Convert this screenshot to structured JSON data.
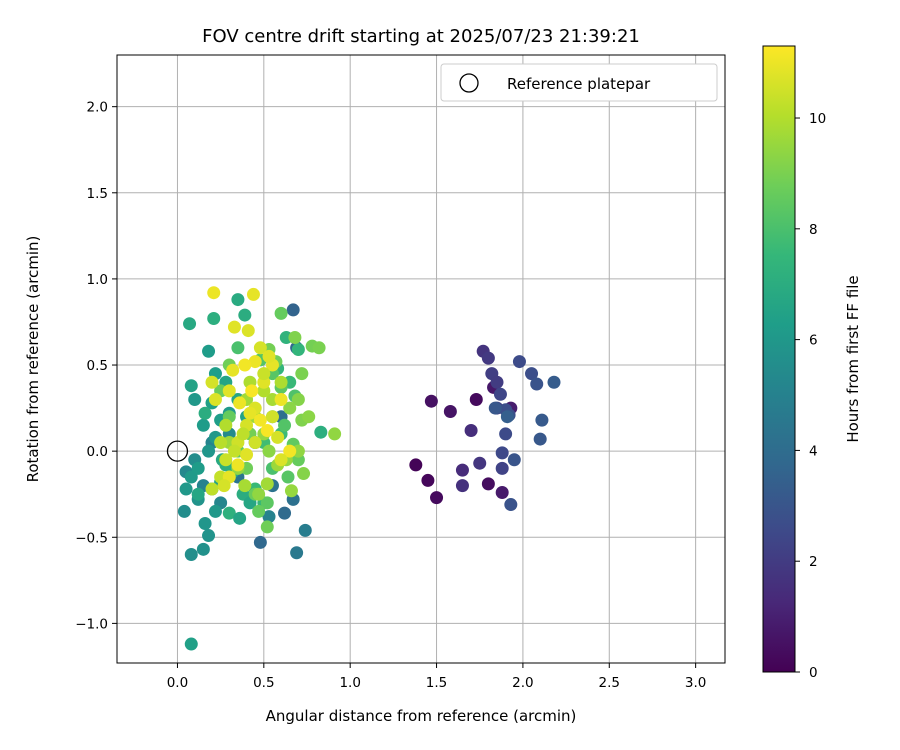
{
  "chart_data": {
    "type": "scatter",
    "title": "FOV centre drift starting at 2025/07/23 21:39:21",
    "xlabel": "Angular distance from reference (arcmin)",
    "ylabel": "Rotation from reference (arcmin)",
    "xlim": [
      -0.35,
      3.17
    ],
    "ylim": [
      -1.23,
      2.3
    ],
    "xticks": [
      0.0,
      0.5,
      1.0,
      1.5,
      2.0,
      2.5,
      3.0
    ],
    "xtick_labels": [
      "0.0",
      "0.5",
      "1.0",
      "1.5",
      "2.0",
      "2.5",
      "3.0"
    ],
    "yticks": [
      -1.0,
      -0.5,
      0.0,
      0.5,
      1.0,
      1.5,
      2.0
    ],
    "ytick_labels": [
      "−1.0",
      "−0.5",
      "0.0",
      "0.5",
      "1.0",
      "1.5",
      "2.0"
    ],
    "grid": true,
    "legend": {
      "placement": "top-right",
      "entries": [
        "Reference platepar"
      ]
    },
    "reference_point": {
      "x": 0.0,
      "y": 0.0,
      "marker": "open-circle"
    },
    "colorbar": {
      "label": "Hours from first FF file",
      "min": 0,
      "max": 11.3,
      "ticks": [
        0,
        2,
        4,
        6,
        8,
        10
      ],
      "tick_labels": [
        "0",
        "2",
        "4",
        "6",
        "8",
        "10"
      ],
      "colormap": "viridis"
    },
    "colormap_stops": [
      "#440154",
      "#482878",
      "#3e4989",
      "#31688e",
      "#26828e",
      "#1f9e89",
      "#35b779",
      "#6ece58",
      "#b5de2b",
      "#fde725"
    ],
    "points": [
      [
        1.38,
        -0.08,
        0.1
      ],
      [
        1.45,
        -0.17,
        0.2
      ],
      [
        1.5,
        -0.27,
        0.3
      ],
      [
        1.47,
        0.29,
        0.5
      ],
      [
        1.58,
        0.23,
        0.6
      ],
      [
        1.73,
        0.3,
        0.3
      ],
      [
        1.8,
        -0.19,
        0.4
      ],
      [
        1.83,
        0.37,
        0.7
      ],
      [
        1.88,
        -0.24,
        0.8
      ],
      [
        1.93,
        0.25,
        0.9
      ],
      [
        1.65,
        -0.11,
        1.4
      ],
      [
        1.65,
        -0.2,
        1.6
      ],
      [
        1.7,
        0.12,
        1.5
      ],
      [
        1.75,
        -0.07,
        1.8
      ],
      [
        1.77,
        0.58,
        1.7
      ],
      [
        1.8,
        0.54,
        1.9
      ],
      [
        1.82,
        0.45,
        2.1
      ],
      [
        1.85,
        0.4,
        2.0
      ],
      [
        1.85,
        0.25,
        2.2
      ],
      [
        1.87,
        0.33,
        2.4
      ],
      [
        1.88,
        -0.01,
        2.5
      ],
      [
        1.88,
        -0.1,
        2.3
      ],
      [
        1.9,
        0.1,
        2.6
      ],
      [
        1.9,
        0.24,
        2.7
      ],
      [
        1.92,
        0.21,
        2.8
      ],
      [
        1.93,
        -0.31,
        2.9
      ],
      [
        1.95,
        -0.05,
        3.0
      ],
      [
        1.98,
        0.52,
        2.6
      ],
      [
        2.05,
        0.45,
        2.7
      ],
      [
        2.08,
        0.39,
        2.9
      ],
      [
        2.1,
        0.07,
        3.1
      ],
      [
        2.11,
        0.18,
        3.2
      ],
      [
        2.18,
        0.4,
        3.3
      ],
      [
        1.84,
        0.25,
        3.1
      ],
      [
        1.91,
        0.2,
        3.4
      ],
      [
        0.67,
        0.82,
        3.6
      ],
      [
        0.48,
        -0.53,
        3.8
      ],
      [
        0.62,
        -0.36,
        3.9
      ],
      [
        0.67,
        -0.28,
        4.2
      ],
      [
        0.69,
        0.6,
        3.7
      ],
      [
        0.45,
        0.05,
        4.0
      ],
      [
        0.55,
        -0.2,
        4.3
      ],
      [
        0.35,
        -0.15,
        4.4
      ],
      [
        0.6,
        0.2,
        4.1
      ],
      [
        0.69,
        -0.59,
        4.6
      ],
      [
        0.74,
        -0.46,
        4.8
      ],
      [
        0.53,
        -0.38,
        5.0
      ],
      [
        0.25,
        -0.3,
        5.2
      ],
      [
        0.15,
        -0.2,
        5.0
      ],
      [
        0.05,
        -0.12,
        5.3
      ],
      [
        0.1,
        -0.05,
        5.5
      ],
      [
        0.2,
        0.05,
        5.1
      ],
      [
        0.3,
        0.1,
        5.4
      ],
      [
        0.08,
        -0.6,
        5.6
      ],
      [
        0.15,
        -0.57,
        5.7
      ],
      [
        0.18,
        -0.49,
        5.8
      ],
      [
        0.16,
        -0.42,
        5.9
      ],
      [
        0.22,
        -0.35,
        6.0
      ],
      [
        0.04,
        -0.35,
        5.5
      ],
      [
        0.12,
        -0.28,
        5.8
      ],
      [
        0.05,
        -0.22,
        6.0
      ],
      [
        0.08,
        -0.15,
        6.1
      ],
      [
        0.12,
        -0.1,
        6.2
      ],
      [
        0.18,
        0.0,
        5.9
      ],
      [
        0.22,
        0.08,
        6.0
      ],
      [
        0.15,
        0.15,
        6.2
      ],
      [
        0.25,
        0.18,
        6.3
      ],
      [
        0.3,
        0.22,
        6.1
      ],
      [
        0.2,
        0.28,
        6.4
      ],
      [
        0.1,
        0.3,
        6.0
      ],
      [
        0.08,
        0.38,
        6.5
      ],
      [
        0.22,
        0.45,
        6.3
      ],
      [
        0.18,
        0.58,
        6.2
      ],
      [
        0.28,
        0.4,
        6.6
      ],
      [
        0.35,
        0.3,
        6.7
      ],
      [
        0.4,
        0.2,
        6.5
      ],
      [
        0.07,
        0.74,
        6.8
      ],
      [
        0.08,
        -1.12,
        6.4
      ],
      [
        0.35,
        0.88,
        6.9
      ],
      [
        0.39,
        0.79,
        7.0
      ],
      [
        0.21,
        0.77,
        7.1
      ],
      [
        0.26,
        -0.05,
        6.8
      ],
      [
        0.32,
        -0.12,
        6.9
      ],
      [
        0.38,
        -0.25,
        7.0
      ],
      [
        0.42,
        -0.3,
        6.7
      ],
      [
        0.3,
        -0.36,
        7.2
      ],
      [
        0.36,
        -0.39,
        6.6
      ],
      [
        0.25,
        -0.18,
        6.5
      ],
      [
        0.28,
        -0.08,
        7.1
      ],
      [
        0.2,
        -0.22,
        6.9
      ],
      [
        0.12,
        -0.25,
        6.7
      ],
      [
        0.16,
        0.22,
        7.0
      ],
      [
        0.83,
        0.11,
        7.1
      ],
      [
        0.63,
        0.66,
        7.3
      ],
      [
        0.7,
        0.59,
        7.4
      ],
      [
        0.5,
        -0.3,
        7.5
      ],
      [
        0.45,
        -0.22,
        7.6
      ],
      [
        0.55,
        0.2,
        7.5
      ],
      [
        0.6,
        0.1,
        7.7
      ],
      [
        0.5,
        0.05,
        7.8
      ],
      [
        0.58,
        0.48,
        7.4
      ],
      [
        0.65,
        0.4,
        7.6
      ],
      [
        0.35,
        0.6,
        8.0
      ],
      [
        0.48,
        0.53,
        8.2
      ],
      [
        0.55,
        0.45,
        8.3
      ],
      [
        0.6,
        0.37,
        8.4
      ],
      [
        0.68,
        0.32,
        8.1
      ],
      [
        0.62,
        0.15,
        8.2
      ],
      [
        0.67,
        0.04,
        8.5
      ],
      [
        0.7,
        -0.05,
        8.6
      ],
      [
        0.64,
        -0.15,
        8.3
      ],
      [
        0.55,
        -0.1,
        8.0
      ],
      [
        0.52,
        -0.3,
        8.4
      ],
      [
        0.47,
        -0.35,
        8.6
      ],
      [
        0.52,
        -0.44,
        8.8
      ],
      [
        0.45,
        -0.25,
        8.7
      ],
      [
        0.4,
        -0.1,
        8.8
      ],
      [
        0.35,
        0.0,
        8.5
      ],
      [
        0.42,
        0.1,
        8.9
      ],
      [
        0.3,
        0.2,
        8.6
      ],
      [
        0.25,
        0.35,
        8.7
      ],
      [
        0.3,
        0.5,
        8.8
      ],
      [
        0.6,
        0.8,
        8.6
      ],
      [
        0.57,
        0.52,
        8.8
      ],
      [
        0.53,
        0.59,
        8.9
      ],
      [
        0.68,
        0.66,
        9.1
      ],
      [
        0.78,
        0.61,
        8.9
      ],
      [
        0.82,
        0.6,
        9.0
      ],
      [
        0.72,
        0.45,
        9.0
      ],
      [
        0.7,
        0.3,
        9.2
      ],
      [
        0.65,
        0.25,
        9.3
      ],
      [
        0.72,
        0.18,
        9.1
      ],
      [
        0.76,
        0.2,
        9.3
      ],
      [
        0.91,
        0.1,
        9.4
      ],
      [
        0.73,
        -0.13,
        9.2
      ],
      [
        0.7,
        0.0,
        9.4
      ],
      [
        0.63,
        -0.05,
        9.5
      ],
      [
        0.58,
        -0.08,
        9.6
      ],
      [
        0.53,
        0.0,
        9.3
      ],
      [
        0.5,
        0.1,
        9.5
      ],
      [
        0.45,
        0.2,
        9.6
      ],
      [
        0.4,
        0.3,
        9.7
      ],
      [
        0.66,
        -0.23,
        9.5
      ],
      [
        0.52,
        -0.19,
        9.7
      ],
      [
        0.47,
        -0.25,
        9.4
      ],
      [
        0.39,
        -0.2,
        9.8
      ],
      [
        0.35,
        -0.1,
        9.5
      ],
      [
        0.3,
        0.05,
        9.6
      ],
      [
        0.55,
        0.3,
        9.8
      ],
      [
        0.6,
        0.4,
        9.9
      ],
      [
        0.5,
        0.35,
        10.0
      ],
      [
        0.42,
        0.4,
        9.9
      ],
      [
        0.2,
        -0.22,
        10.2
      ],
      [
        0.25,
        -0.15,
        10.3
      ],
      [
        0.28,
        -0.05,
        10.4
      ],
      [
        0.35,
        0.05,
        10.5
      ],
      [
        0.4,
        0.15,
        10.6
      ],
      [
        0.45,
        0.25,
        10.7
      ],
      [
        0.5,
        0.4,
        10.8
      ],
      [
        0.55,
        0.5,
        10.9
      ],
      [
        0.6,
        0.3,
        11.0
      ],
      [
        0.65,
        0.0,
        11.1
      ],
      [
        0.21,
        0.92,
        11.0
      ],
      [
        0.44,
        0.91,
        10.9
      ],
      [
        0.33,
        0.72,
        10.8
      ],
      [
        0.41,
        0.7,
        10.7
      ],
      [
        0.48,
        0.6,
        10.6
      ],
      [
        0.53,
        0.55,
        10.8
      ],
      [
        0.45,
        0.52,
        11.0
      ],
      [
        0.39,
        0.5,
        11.1
      ],
      [
        0.32,
        0.47,
        10.9
      ],
      [
        0.2,
        0.4,
        10.6
      ],
      [
        0.22,
        0.3,
        10.7
      ],
      [
        0.3,
        0.35,
        10.8
      ],
      [
        0.36,
        0.28,
        11.0
      ],
      [
        0.42,
        0.22,
        10.9
      ],
      [
        0.48,
        0.18,
        11.1
      ],
      [
        0.52,
        0.12,
        11.2
      ],
      [
        0.45,
        0.05,
        10.5
      ],
      [
        0.4,
        -0.02,
        10.8
      ],
      [
        0.35,
        -0.08,
        11.0
      ],
      [
        0.3,
        -0.15,
        10.9
      ],
      [
        0.27,
        -0.2,
        10.6
      ],
      [
        0.33,
        0.0,
        10.3
      ],
      [
        0.38,
        0.1,
        10.2
      ],
      [
        0.43,
        0.35,
        11.2
      ],
      [
        0.5,
        0.45,
        10.4
      ],
      [
        0.55,
        0.2,
        10.5
      ],
      [
        0.58,
        0.08,
        10.6
      ],
      [
        0.6,
        -0.05,
        10.7
      ],
      [
        0.25,
        0.05,
        10.1
      ],
      [
        0.28,
        0.15,
        10.0
      ]
    ]
  }
}
